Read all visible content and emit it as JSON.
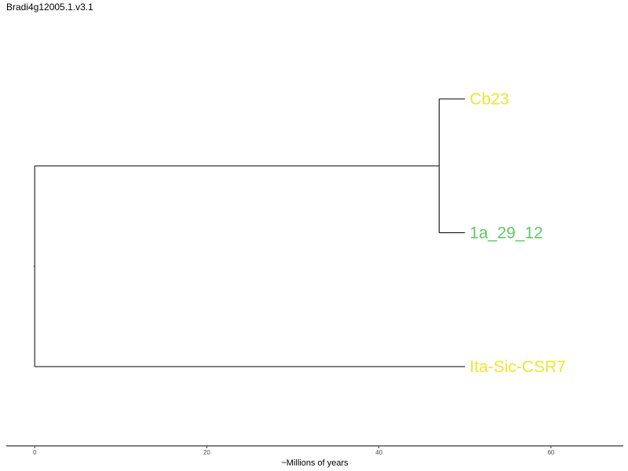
{
  "title": "Bradi4g12005.1.v3.1",
  "chart_data": {
    "type": "tree",
    "xlabel": "~Millions of years",
    "xlim": [
      -3.3,
      68.4
    ],
    "x_ticks": [
      {
        "value": 0,
        "label": "0"
      },
      {
        "value": 20,
        "label": "20"
      },
      {
        "value": 40,
        "label": "40"
      },
      {
        "value": 60,
        "label": "60"
      }
    ],
    "root": {
      "x": 0
    },
    "internal_nodes": [
      {
        "id": "n1",
        "x": 47,
        "children": [
          "Cb23",
          "1a_29_12"
        ]
      }
    ],
    "leaves": [
      {
        "name": "Cb23",
        "x": 50,
        "order": 1,
        "color": "#f2e52a"
      },
      {
        "name": "1a_29_12",
        "x": 50,
        "order": 2,
        "color": "#5ec962"
      },
      {
        "name": "Ita-Sic-CSR7",
        "x": 50,
        "order": 3,
        "color": "#f2e52a"
      }
    ]
  }
}
